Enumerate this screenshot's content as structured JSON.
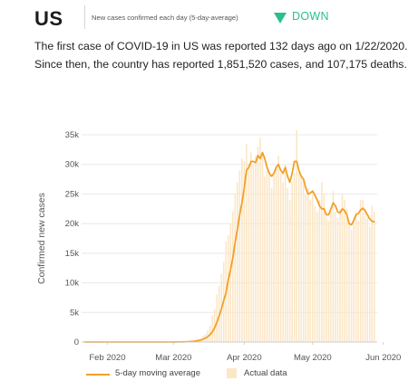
{
  "header": {
    "country": "US",
    "subtitle": "New cases confirmed each day (5-day-average)",
    "trend_label": "DOWN",
    "trend_icon": "down-triangle-icon",
    "trend_color": "#2bbf8a"
  },
  "summary": {
    "line1": "The first case of COVID-19 in US was reported 132 days ago on 1/22/2020.",
    "line2": "Since then, the country has reported 1,851,520 cases, and 107,175 deaths."
  },
  "legend": {
    "line_label": "5-day moving average",
    "bar_label": "Actual data"
  },
  "colors": {
    "line": "#f2a02a",
    "bars": "#fbe6c6",
    "grid": "#e8e8e8"
  },
  "chart_data": {
    "type": "bar",
    "title": "",
    "xlabel": "",
    "ylabel": "Confirmed new cases",
    "ylim": [
      0,
      35000
    ],
    "yticks": [
      0,
      5000,
      10000,
      15000,
      20000,
      25000,
      30000,
      35000
    ],
    "ytick_labels": [
      "0",
      "5k",
      "10k",
      "15k",
      "20k",
      "25k",
      "30k",
      "35k"
    ],
    "xticks": [
      "2020-02-01",
      "2020-03-01",
      "2020-04-01",
      "2020-05-01",
      "2020-06-01"
    ],
    "xtick_labels": [
      "Feb 2020",
      "Mar 2020",
      "Apr 2020",
      "May 2020",
      "Jun 2020"
    ],
    "x_start": "2020-01-22",
    "grid": "horizontal",
    "legend_position": "bottom",
    "series": [
      {
        "name": "Actual data",
        "type": "bar",
        "values": [
          0,
          0,
          0,
          1,
          0,
          0,
          0,
          0,
          1,
          0,
          2,
          0,
          0,
          0,
          0,
          1,
          0,
          0,
          0,
          0,
          1,
          0,
          0,
          0,
          0,
          0,
          0,
          0,
          0,
          0,
          0,
          1,
          0,
          0,
          0,
          2,
          0,
          5,
          3,
          10,
          12,
          20,
          35,
          40,
          60,
          90,
          110,
          150,
          250,
          350,
          500,
          700,
          1100,
          1400,
          2000,
          2800,
          4500,
          5500,
          8000,
          9500,
          11500,
          13500,
          17000,
          18000,
          20000,
          22000,
          25000,
          27000,
          29000,
          31000,
          30500,
          33500,
          30000,
          32000,
          30000,
          31500,
          33000,
          34500,
          31500,
          28000,
          29000,
          28500,
          26000,
          28500,
          29500,
          31500,
          28500,
          27000,
          30000,
          26000,
          24000,
          27000,
          28500,
          35800,
          29000,
          28000,
          27500,
          25000,
          26000,
          24000,
          25000,
          23000,
          22000,
          24000,
          27000,
          25000,
          21000,
          20500,
          22000,
          25500,
          22000,
          21000,
          22500,
          25000,
          24000,
          22500,
          20000,
          19000,
          21000,
          22000,
          20500,
          24000,
          24000,
          22500,
          21000,
          19500,
          23000,
          22000
        ],
        "color": "#fbe6c6"
      },
      {
        "name": "5-day moving average",
        "type": "line",
        "values": [
          0,
          0,
          0,
          0,
          0,
          0,
          0,
          0,
          0,
          0,
          0,
          0,
          0,
          0,
          0,
          0,
          0,
          0,
          0,
          0,
          0,
          0,
          0,
          0,
          0,
          0,
          0,
          0,
          0,
          0,
          0,
          0,
          0,
          0,
          0,
          0,
          1,
          2,
          4,
          6,
          10,
          15,
          23,
          31,
          43,
          58,
          81,
          105,
          139,
          185,
          240,
          340,
          490,
          670,
          900,
          1250,
          1700,
          2400,
          3300,
          4400,
          5600,
          7000,
          8300,
          10500,
          12200,
          14200,
          16800,
          19000,
          21500,
          23500,
          26000,
          29000,
          29500,
          30500,
          30500,
          30300,
          31500,
          31000,
          32000,
          31000,
          29500,
          28500,
          28000,
          28500,
          29500,
          30000,
          29000,
          28500,
          29500,
          28000,
          27000,
          28500,
          30500,
          30500,
          29000,
          28000,
          27500,
          26000,
          25000,
          25200,
          25500,
          24800,
          24000,
          23000,
          22500,
          22500,
          21500,
          21500,
          22500,
          23500,
          23000,
          22000,
          21800,
          22500,
          22200,
          21500,
          20000,
          19800,
          20500,
          21500,
          21700,
          22300,
          22600,
          22200,
          21500,
          20800,
          20400,
          20300
        ]
      }
    ]
  }
}
